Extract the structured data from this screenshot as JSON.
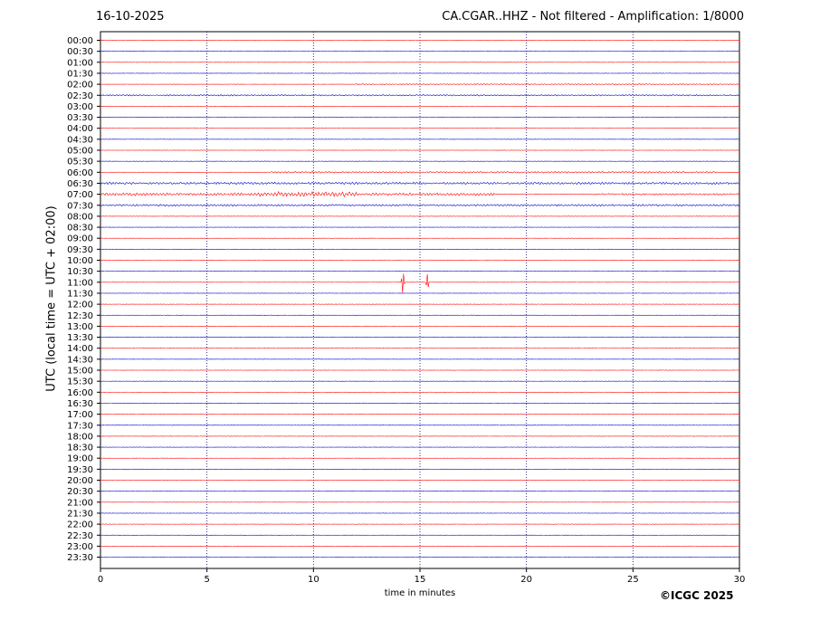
{
  "header": {
    "date": "16-10-2025",
    "station_title": "CA.CGAR..HHZ - Not filtered - Amplification: 1/8000"
  },
  "footer": {
    "copyright": "©ICGC 2025"
  },
  "chart_data": {
    "type": "line",
    "title": "CA.CGAR..HHZ - Not filtered - Amplification: 1/8000",
    "date": "16-10-2025",
    "xlabel": "time in minutes",
    "ylabel": "UTC (local time = UTC + 02:00)",
    "xlim": [
      0,
      30
    ],
    "x_ticks": [
      0,
      5,
      10,
      15,
      20,
      25,
      30
    ],
    "grid": "vertical dotted lines at 5-minute intervals",
    "row_labels": [
      "00:00",
      "00:30",
      "01:00",
      "01:30",
      "02:00",
      "02:30",
      "03:00",
      "03:30",
      "04:00",
      "04:30",
      "05:00",
      "05:30",
      "06:00",
      "06:30",
      "07:00",
      "07:30",
      "08:00",
      "08:30",
      "09:00",
      "09:30",
      "10:00",
      "10:30",
      "11:00",
      "11:30",
      "12:00",
      "12:30",
      "13:00",
      "13:30",
      "14:00",
      "14:30",
      "15:00",
      "15:30",
      "16:00",
      "16:30",
      "17:00",
      "17:30",
      "18:00",
      "18:30",
      "19:00",
      "19:30",
      "20:00",
      "20:30",
      "21:00",
      "21:30",
      "22:00",
      "22:30",
      "23:00",
      "23:30"
    ],
    "trace_colors": [
      "#ff0000",
      "#0000cc"
    ],
    "series": [
      {
        "row": "02:00",
        "activity": [
          {
            "from": 12,
            "to": 30,
            "amplitude": 0.2
          }
        ]
      },
      {
        "row": "02:30",
        "activity": [
          {
            "from": 0,
            "to": 30,
            "amplitude": 0.25
          }
        ]
      },
      {
        "row": "06:00",
        "activity": [
          {
            "from": 8,
            "to": 29,
            "amplitude": 0.3
          },
          {
            "from": 9.8,
            "to": 10.0,
            "amplitude": 0.6
          }
        ]
      },
      {
        "row": "06:30",
        "activity": [
          {
            "from": 0,
            "to": 30,
            "amplitude": 0.4
          }
        ]
      },
      {
        "row": "07:00",
        "activity": [
          {
            "from": 0,
            "to": 18.5,
            "amplitude": 0.5
          },
          {
            "from": 7.5,
            "to": 12,
            "amplitude": 0.9
          },
          {
            "from": 23,
            "to": 30,
            "amplitude": 0.3
          }
        ]
      },
      {
        "row": "07:30",
        "activity": [
          {
            "from": 0,
            "to": 30,
            "amplitude": 0.35
          }
        ]
      },
      {
        "row": "11:00",
        "events": [
          {
            "x": 14.2,
            "amplitude": 2.4
          },
          {
            "x": 15.35,
            "amplitude": 1.6
          }
        ]
      }
    ]
  }
}
